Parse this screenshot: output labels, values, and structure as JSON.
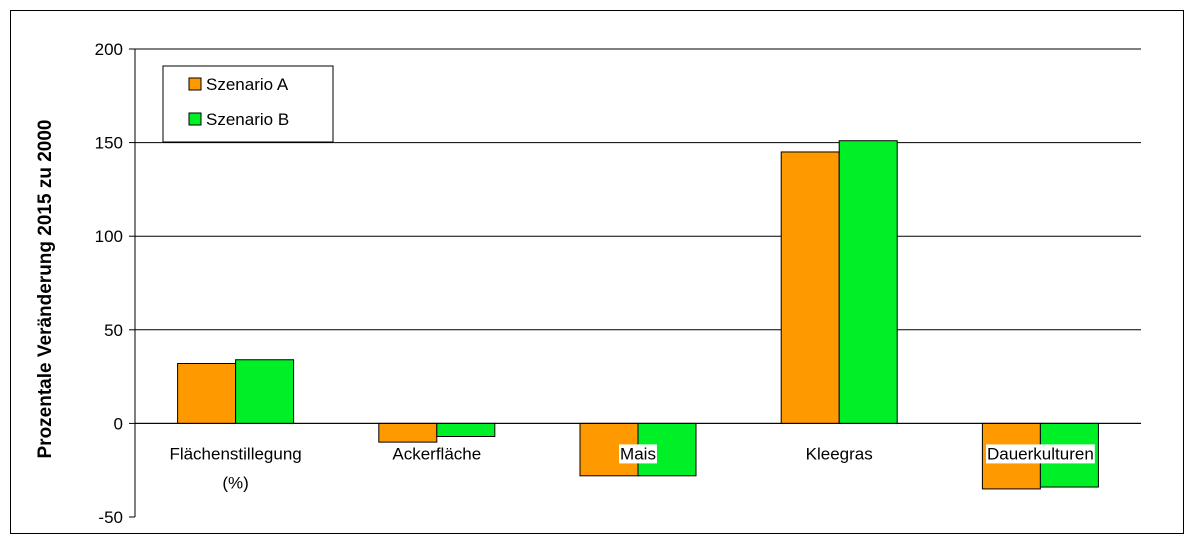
{
  "chart_data": {
    "type": "bar",
    "title": "",
    "xlabel": "",
    "ylabel": "Prozentale Veränderung 2015 zu 2000",
    "ylim": [
      -50,
      200
    ],
    "yticks": [
      -50,
      0,
      50,
      100,
      150,
      200
    ],
    "grid": true,
    "legend_position": "top-left",
    "categories": [
      [
        "Flächenstillegung",
        "(%)"
      ],
      [
        "Ackerfläche"
      ],
      [
        "Mais"
      ],
      [
        "Kleegras"
      ],
      [
        "Dauerkulturen"
      ]
    ],
    "series": [
      {
        "name": "Szenario A",
        "color": "#FF9900",
        "values": [
          32,
          -10,
          -28,
          145,
          -35
        ]
      },
      {
        "name": "Szenario B",
        "color": "#00F028",
        "values": [
          34,
          -7,
          -28,
          151,
          -34
        ]
      }
    ]
  }
}
